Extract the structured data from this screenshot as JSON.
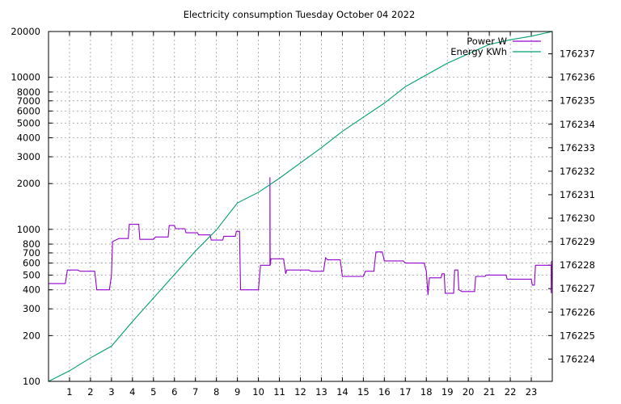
{
  "chart_data": {
    "type": "line",
    "title": "Electricity consumption Tuesday October 04 2022",
    "x_range": [
      0,
      24
    ],
    "x_ticks": [
      1,
      2,
      3,
      4,
      5,
      6,
      7,
      8,
      9,
      10,
      11,
      12,
      13,
      14,
      15,
      16,
      17,
      18,
      19,
      20,
      21,
      22,
      23
    ],
    "y_left": {
      "scale": "log",
      "range": [
        100,
        20000
      ],
      "tick_labels": [
        "100",
        "200",
        "300",
        "400",
        "500",
        "600",
        "700",
        "800",
        "1000",
        "2000",
        "3000",
        "4000",
        "5000",
        "6000",
        "7000",
        "8000",
        "10000",
        "20000"
      ]
    },
    "y_right": {
      "scale": "linear",
      "range": [
        176223.05,
        176237.95
      ],
      "tick_labels": [
        "176224",
        "176225",
        "176226",
        "176227",
        "176228",
        "176229",
        "176230",
        "176231",
        "176232",
        "176233",
        "176234",
        "176235",
        "176236",
        "176237"
      ]
    },
    "grid": true,
    "legend_position": "top-right",
    "series": [
      {
        "name": "Power W",
        "color": "#9400d3",
        "axis": "left",
        "points": [
          [
            0,
            440
          ],
          [
            0.8,
            440
          ],
          [
            0.9,
            540
          ],
          [
            1.4,
            540
          ],
          [
            1.5,
            530
          ],
          [
            2.2,
            530
          ],
          [
            2.3,
            400
          ],
          [
            2.9,
            400
          ],
          [
            3.0,
            500
          ],
          [
            3.05,
            830
          ],
          [
            3.35,
            870
          ],
          [
            3.8,
            870
          ],
          [
            3.85,
            1080
          ],
          [
            4.3,
            1080
          ],
          [
            4.35,
            860
          ],
          [
            5.0,
            860
          ],
          [
            5.1,
            890
          ],
          [
            5.7,
            890
          ],
          [
            5.75,
            1060
          ],
          [
            6.0,
            1060
          ],
          [
            6.05,
            1010
          ],
          [
            6.5,
            1010
          ],
          [
            6.55,
            950
          ],
          [
            7.1,
            950
          ],
          [
            7.15,
            920
          ],
          [
            7.7,
            920
          ],
          [
            7.75,
            850
          ],
          [
            8.3,
            850
          ],
          [
            8.35,
            900
          ],
          [
            8.9,
            900
          ],
          [
            8.95,
            970
          ],
          [
            9.1,
            970
          ],
          [
            9.15,
            400
          ],
          [
            10.0,
            400
          ],
          [
            10.1,
            580
          ],
          [
            10.55,
            580
          ],
          [
            10.55,
            2200
          ],
          [
            10.56,
            580
          ],
          [
            10.6,
            640
          ],
          [
            11.2,
            640
          ],
          [
            11.3,
            510
          ],
          [
            11.35,
            540
          ],
          [
            12.4,
            540
          ],
          [
            12.5,
            530
          ],
          [
            13.1,
            530
          ],
          [
            13.2,
            650
          ],
          [
            13.3,
            630
          ],
          [
            13.9,
            630
          ],
          [
            14.0,
            490
          ],
          [
            15.0,
            490
          ],
          [
            15.1,
            530
          ],
          [
            15.5,
            530
          ],
          [
            15.6,
            710
          ],
          [
            15.9,
            710
          ],
          [
            16.0,
            620
          ],
          [
            16.9,
            620
          ],
          [
            17.0,
            600
          ],
          [
            17.9,
            600
          ],
          [
            18.0,
            530
          ],
          [
            18.05,
            420
          ],
          [
            18.08,
            370
          ],
          [
            18.1,
            410
          ],
          [
            18.15,
            480
          ],
          [
            18.7,
            480
          ],
          [
            18.75,
            510
          ],
          [
            18.85,
            510
          ],
          [
            18.9,
            380
          ],
          [
            19.3,
            380
          ],
          [
            19.35,
            540
          ],
          [
            19.5,
            540
          ],
          [
            19.55,
            400
          ],
          [
            19.7,
            390
          ],
          [
            20.3,
            390
          ],
          [
            20.35,
            490
          ],
          [
            20.8,
            490
          ],
          [
            20.85,
            500
          ],
          [
            21.8,
            500
          ],
          [
            21.85,
            470
          ],
          [
            22.3,
            470
          ],
          [
            23.0,
            470
          ],
          [
            23.05,
            430
          ],
          [
            23.15,
            430
          ],
          [
            23.2,
            580
          ],
          [
            23.95,
            580
          ],
          [
            23.95,
            380
          ],
          [
            23.97,
            620
          ],
          [
            24.0,
            580
          ]
        ]
      },
      {
        "name": "Energy KWh",
        "color": "#009e73",
        "axis": "right",
        "points": [
          [
            0,
            176223.05
          ],
          [
            1,
            176223.5
          ],
          [
            2,
            176224.05
          ],
          [
            3,
            176224.55
          ],
          [
            4,
            176225.6
          ],
          [
            5,
            176226.6
          ],
          [
            6,
            176227.6
          ],
          [
            7,
            176228.6
          ],
          [
            8,
            176229.5
          ],
          [
            9,
            176230.65
          ],
          [
            10,
            176231.1
          ],
          [
            11,
            176231.7
          ],
          [
            12,
            176232.35
          ],
          [
            13,
            176233.0
          ],
          [
            14,
            176233.7
          ],
          [
            15,
            176234.3
          ],
          [
            16,
            176234.9
          ],
          [
            17,
            176235.6
          ],
          [
            18,
            176236.1
          ],
          [
            19,
            176236.6
          ],
          [
            20,
            176237.0
          ],
          [
            21,
            176237.4
          ],
          [
            22,
            176237.6
          ],
          [
            23,
            176237.75
          ],
          [
            24,
            176237.95
          ]
        ]
      }
    ]
  }
}
